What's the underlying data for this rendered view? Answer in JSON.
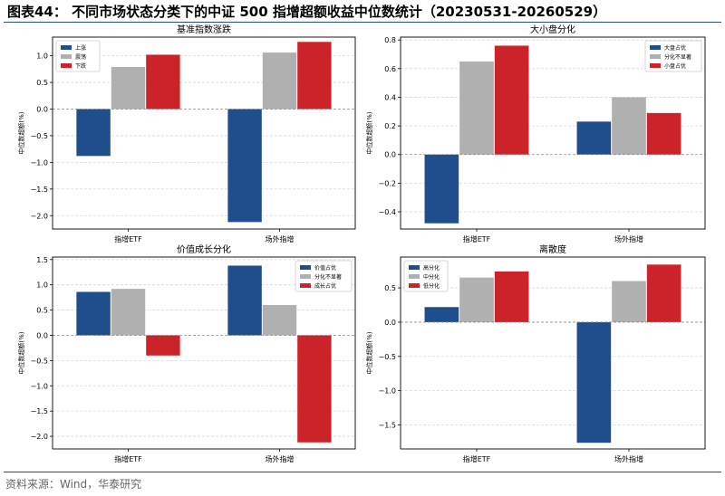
{
  "figure": {
    "title": "图表44：  不同市场状态分类下的中证 500 指增超额收益中位数统计（20230531-20260529）",
    "source": "资料来源：Wind，华泰研究"
  },
  "colors": {
    "blue": "#1f4e8c",
    "gray": "#b0b0b0",
    "red": "#cc2229"
  },
  "chart_data": [
    {
      "type": "bar",
      "title": "基准指数涨跌",
      "categories": [
        "指增ETF",
        "场外指增"
      ],
      "series": [
        {
          "name": "上涨",
          "values": [
            -0.88,
            -2.12
          ]
        },
        {
          "name": "震荡",
          "values": [
            0.79,
            1.06
          ]
        },
        {
          "name": "下跌",
          "values": [
            1.02,
            1.26
          ]
        }
      ],
      "ylabel": "中位数超额(%)",
      "ylim": [
        -2.25,
        1.35
      ],
      "yticks": [
        -2.0,
        -1.5,
        -1.0,
        -0.5,
        0.0,
        0.5,
        1.0
      ],
      "grid": true,
      "legend": "top-left"
    },
    {
      "type": "bar",
      "title": "大小盘分化",
      "categories": [
        "指增ETF",
        "场外指增"
      ],
      "series": [
        {
          "name": "大盘占优",
          "values": [
            -0.48,
            0.23
          ]
        },
        {
          "name": "分化不显著",
          "values": [
            0.65,
            0.4
          ]
        },
        {
          "name": "小盘占优",
          "values": [
            0.76,
            0.29
          ]
        }
      ],
      "ylabel": "中位数超额(%)",
      "ylim": [
        -0.52,
        0.82
      ],
      "yticks": [
        -0.4,
        -0.2,
        0.0,
        0.2,
        0.4,
        0.6,
        0.8
      ],
      "grid": true,
      "legend": "top-right"
    },
    {
      "type": "bar",
      "title": "价值成长分化",
      "categories": [
        "指增ETF",
        "场外指增"
      ],
      "series": [
        {
          "name": "价值占优",
          "values": [
            0.86,
            1.38
          ]
        },
        {
          "name": "分化不显著",
          "values": [
            0.92,
            0.6
          ]
        },
        {
          "name": "成长占优",
          "values": [
            -0.4,
            -2.12
          ]
        }
      ],
      "ylabel": "中位数超额(%)",
      "ylim": [
        -2.25,
        1.55
      ],
      "yticks": [
        -2.0,
        -1.5,
        -1.0,
        -0.5,
        0.0,
        0.5,
        1.0,
        1.5
      ],
      "grid": true,
      "legend": "top-right"
    },
    {
      "type": "bar",
      "title": "离散度",
      "categories": [
        "指增ETF",
        "场外指增"
      ],
      "series": [
        {
          "name": "高分化",
          "values": [
            0.22,
            -1.76
          ]
        },
        {
          "name": "中分化",
          "values": [
            0.65,
            0.6
          ]
        },
        {
          "name": "低分化",
          "values": [
            0.74,
            0.84
          ]
        }
      ],
      "ylabel": "中位数超额(%)",
      "ylim": [
        -1.85,
        0.95
      ],
      "yticks": [
        -1.5,
        -1.0,
        -0.5,
        0.0,
        0.5
      ],
      "grid": true,
      "legend": "top-left"
    }
  ]
}
